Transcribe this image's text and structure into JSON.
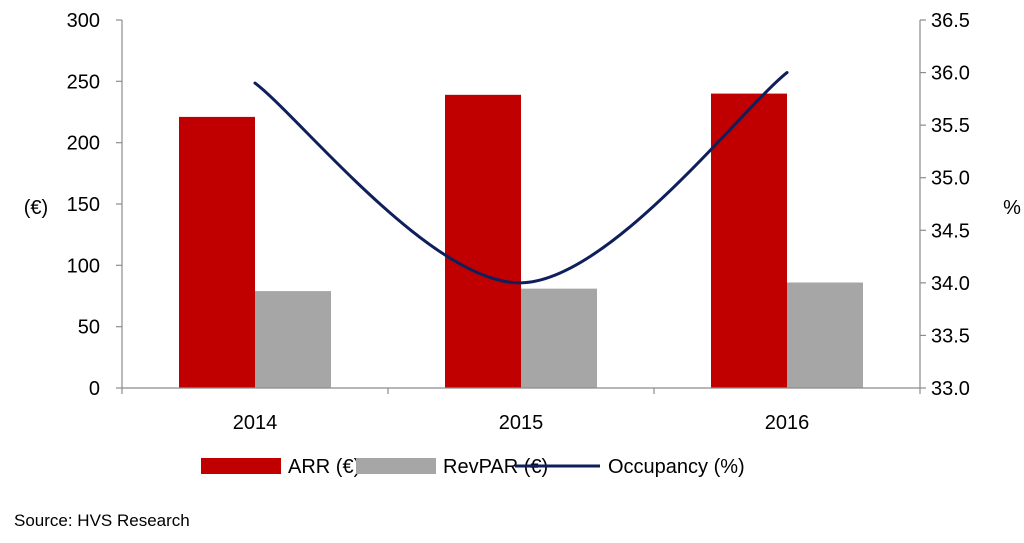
{
  "chart_data": {
    "type": "bar",
    "categories": [
      "2014",
      "2015",
      "2016"
    ],
    "series": [
      {
        "name": "ARR (€)",
        "kind": "bar",
        "axis": "left",
        "color": "#c00000",
        "values": [
          221,
          239,
          240
        ]
      },
      {
        "name": "RevPAR (€)",
        "kind": "bar",
        "axis": "left",
        "color": "#a6a6a6",
        "values": [
          79,
          81,
          86
        ]
      },
      {
        "name": "Occupancy (%)",
        "kind": "line",
        "axis": "right",
        "color": "#0f1f5c",
        "values": [
          35.9,
          34.0,
          36.0
        ]
      }
    ],
    "ylabel": "(€)",
    "y2label": "%",
    "ylim": [
      0,
      300
    ],
    "y2lim": [
      33.0,
      36.5
    ],
    "yticks": [
      "0",
      "50",
      "100",
      "150",
      "200",
      "250",
      "300"
    ],
    "y2ticks": [
      "33.0",
      "33.5",
      "34.0",
      "34.5",
      "35.0",
      "35.5",
      "36.0",
      "36.5"
    ],
    "grid": false,
    "legend": "bottom",
    "title": ""
  },
  "source": "Source: HVS Research"
}
